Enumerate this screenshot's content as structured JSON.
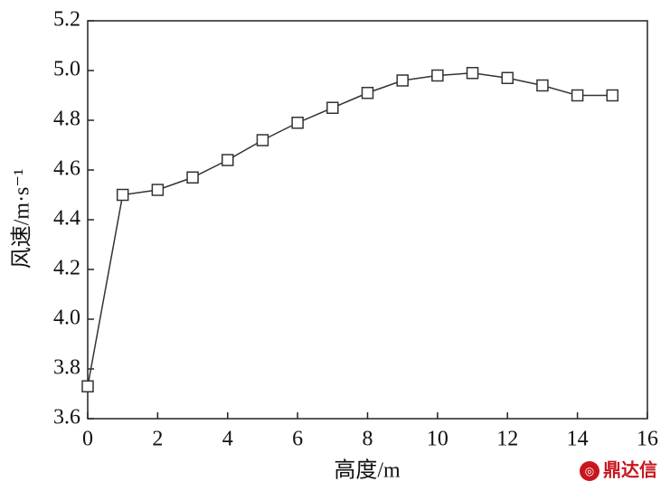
{
  "chart_data": {
    "type": "line",
    "x_label": "高度/m",
    "y_label": "风速/m·s⁻¹",
    "x": [
      0,
      1,
      2,
      3,
      4,
      5,
      6,
      7,
      8,
      9,
      10,
      11,
      12,
      13,
      14,
      15
    ],
    "series": [
      {
        "color": "#333333",
        "values": [
          3.73,
          4.5,
          4.52,
          4.57,
          4.64,
          4.72,
          4.79,
          4.85,
          4.91,
          4.96,
          4.98,
          4.99,
          4.97,
          4.94,
          4.9,
          4.9
        ]
      }
    ],
    "xlim": [
      0,
      16
    ],
    "xticks": [
      0,
      2,
      4,
      6,
      8,
      10,
      12,
      14,
      16
    ],
    "ylim": [
      3.6,
      5.2
    ],
    "yticks": [
      3.6,
      3.8,
      {
        "value": 4,
        "label": "4.0"
      },
      4.2,
      4.4,
      4.6,
      4.8,
      {
        "value": 5,
        "label": "5.0"
      },
      5.2
    ],
    "grid": false,
    "watermark": "鼎达信"
  }
}
